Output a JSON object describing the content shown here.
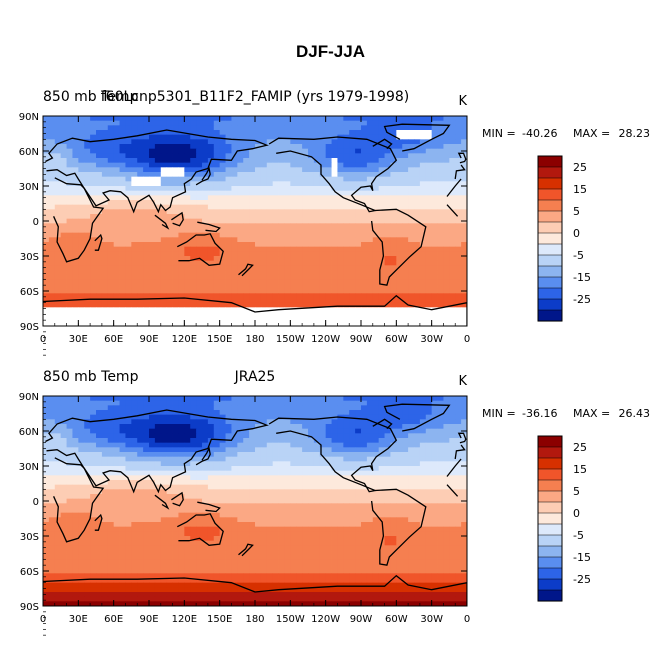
{
  "title": "DJF-JJA",
  "panels": [
    {
      "left_label": "850 mb Temp",
      "center_label": "f60Lcnp5301_B11F2_FAMIP (yrs 1979-1998)",
      "units": "K",
      "min_label": "MIN =",
      "min_value": "-40.26",
      "max_label": "MAX =",
      "max_value": "28.23",
      "map_type": "global cylindrical equidistant, 0 to 360 longitude",
      "pattern": "model"
    },
    {
      "left_label": "850 mb Temp",
      "center_label": "JRA25",
      "units": "K",
      "min_label": "MIN =",
      "min_value": "-36.16",
      "max_label": "MAX =",
      "max_value": "26.43",
      "map_type": "global cylindrical equidistant, 0 to 360 longitude",
      "pattern": "reanalysis"
    }
  ],
  "lat_ticks": [
    "90N",
    "60N",
    "30N",
    "0",
    "30S",
    "60S",
    "90S"
  ],
  "lon_ticks": [
    "0",
    "30E",
    "60E",
    "90E",
    "120E",
    "150E",
    "180",
    "150W",
    "120W",
    "90W",
    "60W",
    "30W",
    "0"
  ],
  "colorbar": {
    "labels": [
      "25",
      "15",
      "5",
      "0",
      "-5",
      "-15",
      "-25"
    ],
    "colors": [
      "#8b0000",
      "#b2180e",
      "#d73000",
      "#f0552a",
      "#f57f50",
      "#fba884",
      "#fdcdb4",
      "#fde9dc",
      "#dde9fb",
      "#b9d3f6",
      "#8cb4f0",
      "#5a8ef0",
      "#2d64e8",
      "#0c3cc8",
      "#00168a"
    ]
  }
}
